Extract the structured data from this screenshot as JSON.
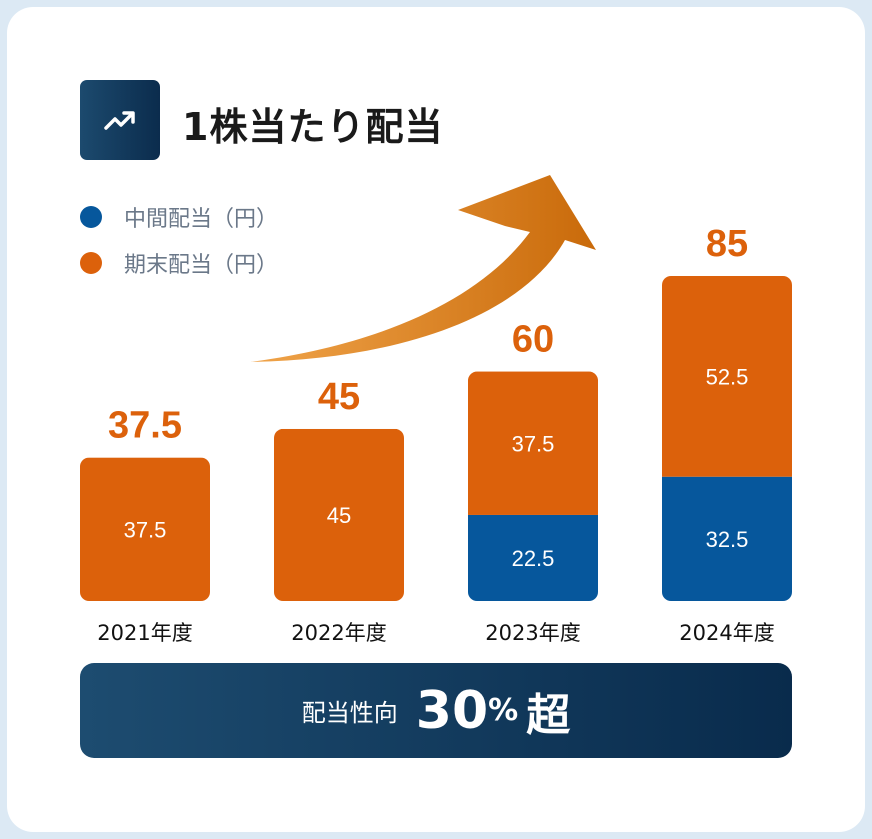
{
  "title": "1株当たり配当",
  "title_icon": "trending-up-icon",
  "colors": {
    "interim": "#06579c",
    "final": "#dc610b",
    "total_label": "#dc610b",
    "banner": "#0b2f50"
  },
  "chart_data": {
    "type": "bar",
    "stacked": true,
    "title": "1株当たり配当",
    "categories": [
      "2021年度",
      "2022年度",
      "2023年度",
      "2024年度"
    ],
    "series": [
      {
        "name": "中間配当（円）",
        "values": [
          0,
          0,
          22.5,
          32.5
        ],
        "labels": [
          "",
          "",
          "22.5",
          "32.5"
        ]
      },
      {
        "name": "期末配当（円）",
        "values": [
          37.5,
          45,
          37.5,
          52.5
        ],
        "labels": [
          "37.5",
          "45",
          "37.5",
          "52.5"
        ]
      }
    ],
    "totals": [
      "37.5",
      "45",
      "60",
      "85"
    ],
    "legend": "top-left",
    "grid": false
  },
  "banner": {
    "label": "配当性向",
    "value": "30",
    "unit": "%",
    "suffix": "超"
  }
}
